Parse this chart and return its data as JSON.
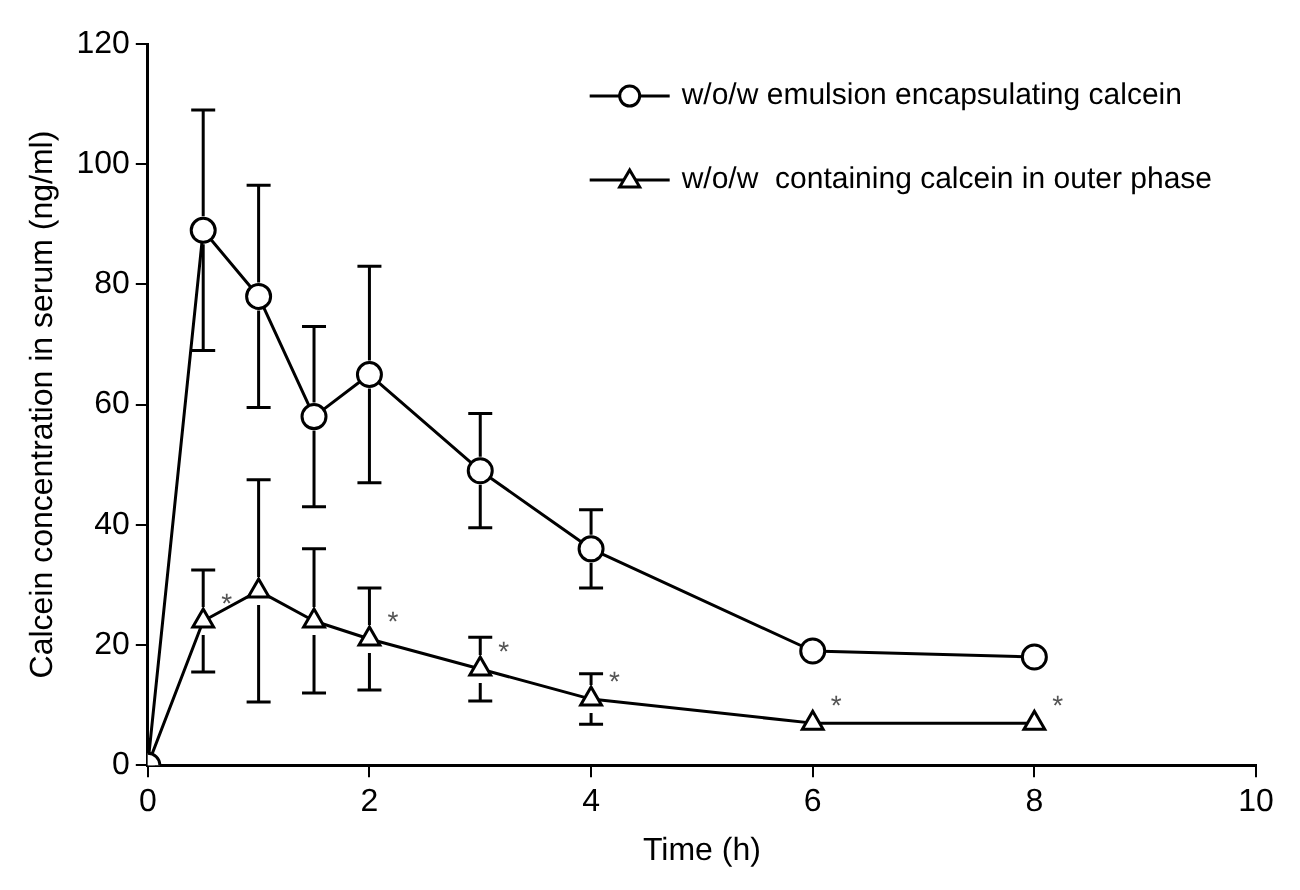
{
  "chart_data": {
    "type": "line",
    "xlabel": "Time (h)",
    "ylabel": "Calcein concentration in serum (ng/ml)",
    "x": [
      0,
      0.5,
      1,
      1.5,
      2,
      3,
      4,
      6,
      8
    ],
    "series": [
      {
        "name": "w/o/w emulsion encapsulating calcein",
        "color": "#000000",
        "marker": "circle",
        "values": [
          0,
          89,
          78,
          58,
          65,
          49,
          36,
          19,
          18
        ],
        "errors": [
          null,
          20,
          18.5,
          15,
          18,
          9.5,
          6.5,
          null,
          null
        ]
      },
      {
        "name": "w/o/w  containing calcein in outer phase",
        "color": "#000000",
        "marker": "triangle",
        "values": [
          0,
          24,
          29,
          24,
          21,
          16,
          11,
          7,
          7
        ],
        "errors": [
          null,
          8.5,
          18.5,
          12,
          8.5,
          5.3,
          4.2,
          null,
          null
        ]
      }
    ],
    "annotations": [
      {
        "text": "*",
        "x": 0.5,
        "y": 24
      },
      {
        "text": "*",
        "x": 2,
        "y": 21
      },
      {
        "text": "*",
        "x": 3,
        "y": 16
      },
      {
        "text": "*",
        "x": 4,
        "y": 11
      },
      {
        "text": "*",
        "x": 6,
        "y": 7
      },
      {
        "text": "*",
        "x": 8,
        "y": 7
      }
    ],
    "xlim": [
      0,
      10
    ],
    "xticks": [
      0,
      2,
      4,
      6,
      8,
      10
    ],
    "ylim": [
      0,
      120
    ],
    "yticks": [
      0,
      20,
      40,
      60,
      80,
      100,
      120
    ],
    "grid": false,
    "legend": "top right",
    "line_style": "solid"
  }
}
